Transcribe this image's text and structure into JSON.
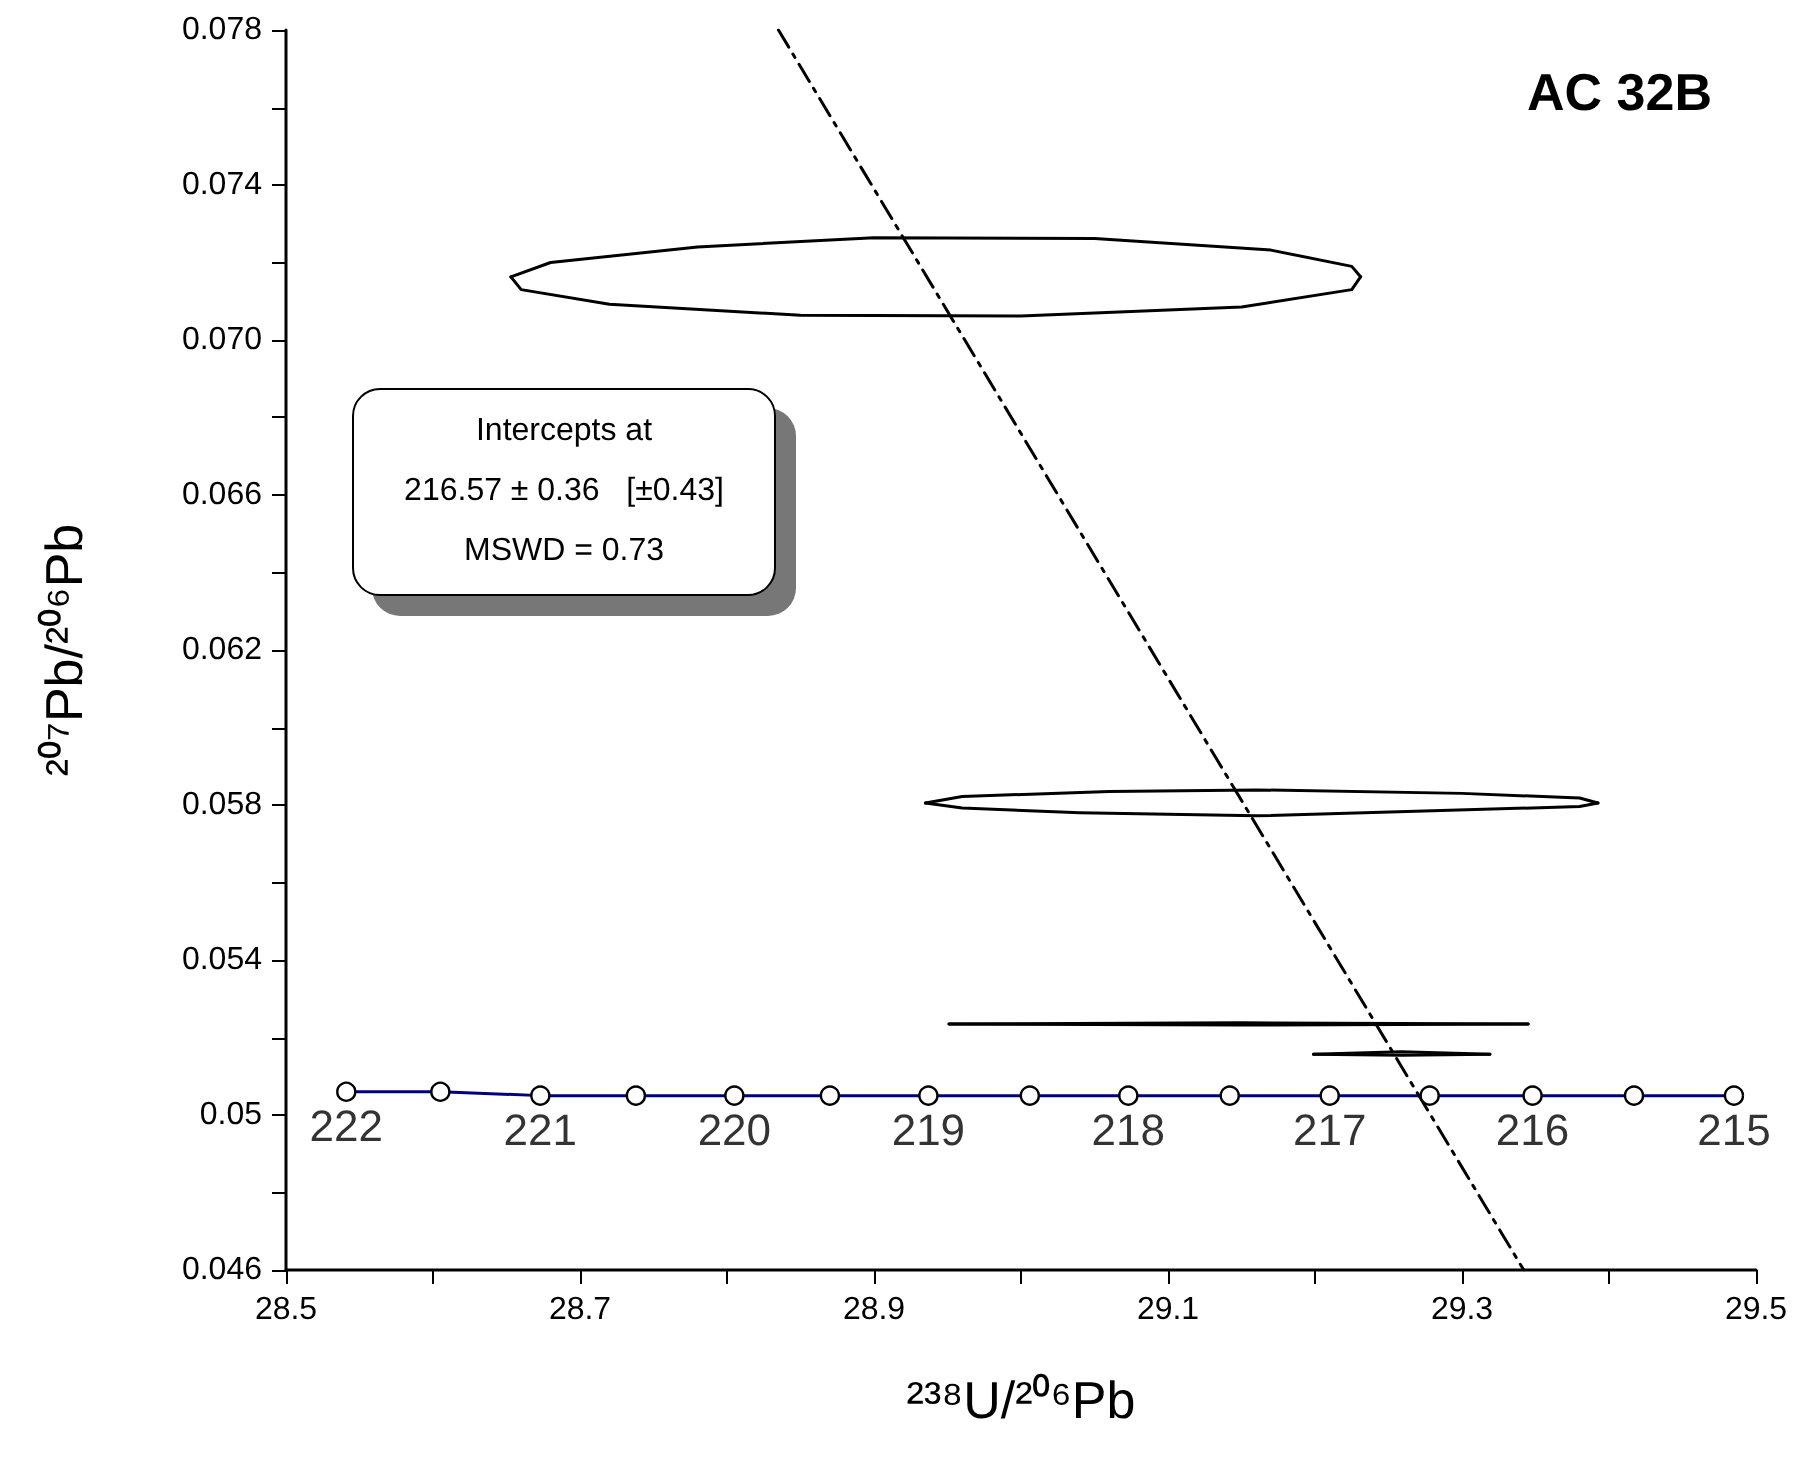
{
  "chart_data": {
    "type": "line",
    "title": "AC 32B",
    "xlabel": "²³⁸U/²⁰⁶Pb",
    "ylabel": "²⁰⁷Pb/²⁰⁶Pb",
    "xlim": [
      28.5,
      29.5
    ],
    "ylim": [
      0.046,
      0.078
    ],
    "xticks": [
      28.5,
      {
        "value": 28.6,
        "label": null
      },
      28.7,
      {
        "value": 28.8,
        "label": null
      },
      28.9,
      {
        "value": 29.0,
        "label": null
      },
      29.1,
      {
        "value": 29.2,
        "label": null
      },
      29.3,
      {
        "value": 29.4,
        "label": null
      },
      29.5
    ],
    "yticks": [
      0.046,
      {
        "value": 0.048,
        "label": null
      },
      0.05,
      {
        "value": 0.052,
        "label": null
      },
      0.054,
      {
        "value": 0.056,
        "label": null
      },
      0.058,
      {
        "value": 0.06,
        "label": null
      },
      0.062,
      {
        "value": 0.064,
        "label": null
      },
      0.066,
      {
        "value": 0.068,
        "label": null
      },
      {
        "value": 0.07,
        "label": "0.070"
      },
      {
        "value": 0.072,
        "label": null
      },
      0.074,
      {
        "value": 0.076,
        "label": null
      },
      0.078
    ],
    "grid": false,
    "series": [
      {
        "marker": "none",
        "color": "#000000",
        "x": [
          28.653,
          28.68,
          28.78,
          28.9,
          29.05,
          29.17,
          29.225,
          29.231
        ],
        "values": [
          0.07163,
          0.072,
          0.0724,
          0.07264,
          0.07262,
          0.07232,
          0.0719,
          0.07163
        ]
      },
      {
        "marker": "none",
        "color": "#000000",
        "x": [
          28.653,
          28.66,
          28.72,
          28.85,
          29.0,
          29.15,
          29.225,
          29.231
        ],
        "values": [
          0.07163,
          0.0713,
          0.07092,
          0.07064,
          0.07062,
          0.07085,
          0.0713,
          0.07163
        ]
      },
      {
        "marker": "none",
        "color": "#000000",
        "x": [
          28.935,
          28.96,
          29.06,
          29.16,
          29.3,
          29.38,
          29.3925
        ],
        "values": [
          0.05805,
          0.05822,
          0.05835,
          0.05839,
          0.0583,
          0.05818,
          0.05805
        ]
      },
      {
        "marker": "none",
        "color": "#000000",
        "x": [
          28.935,
          28.96,
          29.04,
          29.16,
          29.28,
          29.38,
          29.3925
        ],
        "values": [
          0.05805,
          0.05792,
          0.0578,
          0.05772,
          0.05785,
          0.05796,
          0.05805
        ]
      },
      {
        "marker": "none",
        "color": "#000000",
        "x": [
          28.951,
          29.15,
          29.345
        ],
        "values": [
          0.05235,
          0.05238,
          0.05235
        ]
      },
      {
        "marker": "none",
        "color": "#000000",
        "x": [
          28.951,
          29.15,
          29.345
        ],
        "values": [
          0.05235,
          0.05232,
          0.05235
        ]
      },
      {
        "marker": "none",
        "color": "#000000",
        "x": [
          29.199,
          29.259,
          29.319
        ],
        "values": [
          0.05157,
          0.05163,
          0.05157
        ]
      },
      {
        "marker": "none",
        "color": "#000000",
        "x": [
          29.199,
          29.259,
          29.319
        ],
        "values": [
          0.05157,
          0.05154,
          0.05157
        ]
      },
      {
        "marker": "circle",
        "color": "#000080",
        "x": [
          28.541,
          28.605,
          28.673,
          28.738,
          28.805,
          28.87,
          28.937,
          29.006,
          29.073,
          29.142,
          29.21,
          29.278,
          29.348,
          29.417,
          29.485
        ],
        "values": [
          0.0506,
          0.0506,
          0.0505,
          0.0505,
          0.0505,
          0.0505,
          0.0505,
          0.0505,
          0.0505,
          0.0505,
          0.0505,
          0.0505,
          0.0505,
          0.0505,
          0.0505
        ]
      },
      {
        "marker": "none",
        "line_style": "dashed",
        "color": "#000000",
        "x": [
          28.835,
          29.342
        ],
        "values": [
          0.078,
          0.046
        ]
      }
    ],
    "annotations": [
      {
        "text": "222",
        "x": 28.541,
        "y": 0.0506
      },
      {
        "text": "221",
        "x": 28.673,
        "y": 0.0505
      },
      {
        "text": "220",
        "x": 28.805,
        "y": 0.0505
      },
      {
        "text": "219",
        "x": 28.937,
        "y": 0.0505
      },
      {
        "text": "218",
        "x": 29.073,
        "y": 0.0505
      },
      {
        "text": "217",
        "x": 29.21,
        "y": 0.0505
      },
      {
        "text": "216",
        "x": 29.348,
        "y": 0.0505
      },
      {
        "text": "215",
        "x": 29.485,
        "y": 0.0505
      },
      "Intercepts at",
      "216.57 ± 0.36   [±0.43]",
      "MSWD = 0.73"
    ]
  }
}
